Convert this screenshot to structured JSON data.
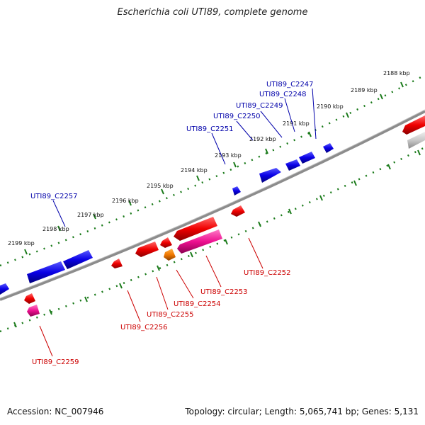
{
  "title": "Escherichia coli UTI89, complete genome",
  "footer": {
    "accession": "Accession: NC_007946",
    "topology": "Topology: circular; Length: 5,065,741 bp; Genes: 5,131"
  },
  "colors": {
    "backbone": "#808080",
    "forward_gene": "#0a00e6",
    "reverse_gene": "#e60000",
    "reverse_alt_gene": "#e6007a",
    "orange_gene": "#e67300",
    "grey_gene": "#bbbbbb",
    "tick": "#1a7a1a",
    "forward_label": "#0000aa",
    "reverse_label": "#cc0000"
  },
  "ticks": [
    "2188 kbp",
    "2189 kbp",
    "2190 kbp",
    "2191 kbp",
    "2192 kbp",
    "2193 kbp",
    "2194 kbp",
    "2195 kbp",
    "2196 kbp",
    "2197 kbp",
    "2198 kbp",
    "2199 kbp"
  ],
  "forward_labels": [
    "UTI89_C2247",
    "UTI89_C2248",
    "UTI89_C2249",
    "UTI89_C2250",
    "UTI89_C2251",
    "UTI89_C2257"
  ],
  "reverse_labels": [
    "UTI89_C2252",
    "UTI89_C2253",
    "UTI89_C2254",
    "UTI89_C2255",
    "UTI89_C2256",
    "UTI89_C2259"
  ]
}
